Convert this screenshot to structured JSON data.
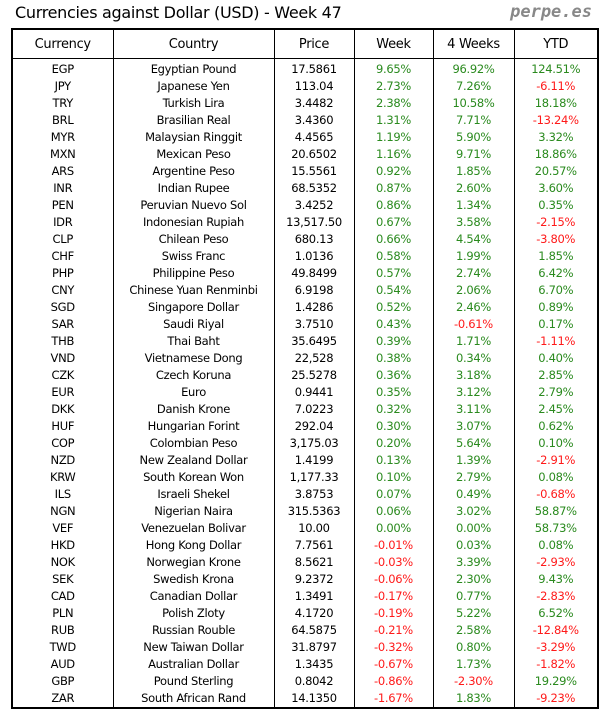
{
  "title": "Currencies against Dollar (USD) - Week 47",
  "brand": "perpe.es",
  "colors": {
    "positive": "#2a8a1e",
    "negative": "#ff1a1a",
    "text": "#000000"
  },
  "headers": [
    "Currency",
    "Country",
    "Price",
    "Week",
    "4 Weeks",
    "YTD"
  ],
  "rows": [
    [
      "EGP",
      "Egyptian Pound",
      "17.5861",
      "9.65%",
      "96.92%",
      "124.51%"
    ],
    [
      "JPY",
      "Japanese Yen",
      "113.04",
      "2.73%",
      "7.26%",
      "-6.11%"
    ],
    [
      "TRY",
      "Turkish Lira",
      "3.4482",
      "2.38%",
      "10.58%",
      "18.18%"
    ],
    [
      "BRL",
      "Brasilian Real",
      "3.4360",
      "1.31%",
      "7.71%",
      "-13.24%"
    ],
    [
      "MYR",
      "Malaysian Ringgit",
      "4.4565",
      "1.19%",
      "5.90%",
      "3.32%"
    ],
    [
      "MXN",
      "Mexican Peso",
      "20.6502",
      "1.16%",
      "9.71%",
      "18.86%"
    ],
    [
      "ARS",
      "Argentine Peso",
      "15.5561",
      "0.92%",
      "1.85%",
      "20.57%"
    ],
    [
      "INR",
      "Indian Rupee",
      "68.5352",
      "0.87%",
      "2.60%",
      "3.60%"
    ],
    [
      "PEN",
      "Peruvian Nuevo Sol",
      "3.4252",
      "0.86%",
      "1.34%",
      "0.35%"
    ],
    [
      "IDR",
      "Indonesian Rupiah",
      "13,517.50",
      "0.67%",
      "3.58%",
      "-2.15%"
    ],
    [
      "CLP",
      "Chilean Peso",
      "680.13",
      "0.66%",
      "4.54%",
      "-3.80%"
    ],
    [
      "CHF",
      "Swiss Franc",
      "1.0136",
      "0.58%",
      "1.99%",
      "1.85%"
    ],
    [
      "PHP",
      "Philippine Peso",
      "49.8499",
      "0.57%",
      "2.74%",
      "6.42%"
    ],
    [
      "CNY",
      "Chinese Yuan Renminbi",
      "6.9198",
      "0.54%",
      "2.06%",
      "6.70%"
    ],
    [
      "SGD",
      "Singapore Dollar",
      "1.4286",
      "0.52%",
      "2.46%",
      "0.89%"
    ],
    [
      "SAR",
      "Saudi Riyal",
      "3.7510",
      "0.43%",
      "-0.61%",
      "0.17%"
    ],
    [
      "THB",
      "Thai Baht",
      "35.6495",
      "0.39%",
      "1.71%",
      "-1.11%"
    ],
    [
      "VND",
      "Vietnamese Dong",
      "22,528",
      "0.38%",
      "0.34%",
      "0.40%"
    ],
    [
      "CZK",
      "Czech Koruna",
      "25.5278",
      "0.36%",
      "3.18%",
      "2.85%"
    ],
    [
      "EUR",
      "Euro",
      "0.9441",
      "0.35%",
      "3.12%",
      "2.79%"
    ],
    [
      "DKK",
      "Danish Krone",
      "7.0223",
      "0.32%",
      "3.11%",
      "2.45%"
    ],
    [
      "HUF",
      "Hungarian Forint",
      "292.04",
      "0.30%",
      "3.07%",
      "0.62%"
    ],
    [
      "COP",
      "Colombian Peso",
      "3,175.03",
      "0.20%",
      "5.64%",
      "0.10%"
    ],
    [
      "NZD",
      "New Zealand Dollar",
      "1.4199",
      "0.13%",
      "1.39%",
      "-2.91%"
    ],
    [
      "KRW",
      "South Korean Won",
      "1,177.33",
      "0.10%",
      "2.79%",
      "0.08%"
    ],
    [
      "ILS",
      "Israeli Shekel",
      "3.8753",
      "0.07%",
      "0.49%",
      "-0.68%"
    ],
    [
      "NGN",
      "Nigerian Naira",
      "315.5363",
      "0.06%",
      "3.02%",
      "58.87%"
    ],
    [
      "VEF",
      "Venezuelan Bolivar",
      "10.00",
      "0.00%",
      "0.00%",
      "58.73%"
    ],
    [
      "HKD",
      "Hong Kong Dollar",
      "7.7561",
      "-0.01%",
      "0.03%",
      "0.08%"
    ],
    [
      "NOK",
      "Norwegian Krone",
      "8.5621",
      "-0.03%",
      "3.39%",
      "-2.93%"
    ],
    [
      "SEK",
      "Swedish Krona",
      "9.2372",
      "-0.06%",
      "2.30%",
      "9.43%"
    ],
    [
      "CAD",
      "Canadian Dollar",
      "1.3491",
      "-0.17%",
      "0.77%",
      "-2.83%"
    ],
    [
      "PLN",
      "Polish Zloty",
      "4.1720",
      "-0.19%",
      "5.22%",
      "6.52%"
    ],
    [
      "RUB",
      "Russian Rouble",
      "64.5875",
      "-0.21%",
      "2.58%",
      "-12.84%"
    ],
    [
      "TWD",
      "New Taiwan Dollar",
      "31.8797",
      "-0.32%",
      "0.80%",
      "-3.29%"
    ],
    [
      "AUD",
      "Australian Dollar",
      "1.3435",
      "-0.67%",
      "1.73%",
      "-1.82%"
    ],
    [
      "GBP",
      "Pound Sterling",
      "0.8042",
      "-0.86%",
      "-2.30%",
      "19.29%"
    ],
    [
      "ZAR",
      "South African Rand",
      "14.1350",
      "-1.67%",
      "1.83%",
      "-9.23%"
    ]
  ]
}
